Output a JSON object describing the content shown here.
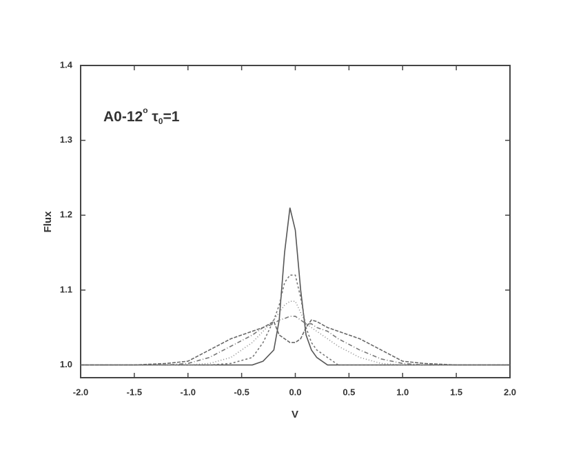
{
  "chart_data": {
    "type": "line",
    "xlabel": "V",
    "ylabel": "Flux",
    "annotation": [
      "A0-12",
      "o",
      " τ",
      "0",
      "=1"
    ],
    "x": [
      -2.0,
      -1.5,
      -1.2,
      -1.0,
      -0.8,
      -0.6,
      -0.4,
      -0.3,
      -0.2,
      -0.15,
      -0.1,
      -0.05,
      0,
      0.05,
      0.1,
      0.15,
      0.2,
      0.3,
      0.4,
      0.6,
      0.8,
      1.0,
      1.2,
      1.5,
      2.0
    ],
    "series": [
      {
        "color": "#555555",
        "dash": "none",
        "values": [
          1.0,
          1.0,
          1.0,
          1.0,
          1.0,
          1.0,
          1.0,
          1.005,
          1.02,
          1.06,
          1.15,
          1.21,
          1.18,
          1.1,
          1.04,
          1.02,
          1.01,
          1.0,
          1.0,
          1.0,
          1.0,
          1.0,
          1.0,
          1.0,
          1.0
        ]
      },
      {
        "color": "#777777",
        "dash": "3,3",
        "values": [
          1.0,
          1.0,
          1.0,
          1.0,
          1.0,
          1.002,
          1.01,
          1.03,
          1.06,
          1.08,
          1.11,
          1.12,
          1.12,
          1.09,
          1.05,
          1.03,
          1.02,
          1.01,
          1.0,
          1.0,
          1.0,
          1.0,
          1.0,
          1.0,
          1.0
        ]
      },
      {
        "color": "#888888",
        "dash": "1,3",
        "values": [
          1.0,
          1.0,
          1.0,
          1.0,
          1.002,
          1.01,
          1.03,
          1.045,
          1.06,
          1.07,
          1.08,
          1.085,
          1.085,
          1.07,
          1.055,
          1.05,
          1.045,
          1.035,
          1.025,
          1.01,
          1.002,
          1.0,
          1.0,
          1.0,
          1.0
        ]
      },
      {
        "color": "#777777",
        "dash": "6,3,1,3",
        "values": [
          1.0,
          1.0,
          1.0,
          1.002,
          1.01,
          1.025,
          1.04,
          1.05,
          1.055,
          1.06,
          1.062,
          1.065,
          1.065,
          1.06,
          1.055,
          1.055,
          1.05,
          1.045,
          1.035,
          1.02,
          1.008,
          1.002,
          1.0,
          1.0,
          1.0
        ]
      },
      {
        "color": "#666666",
        "dash": "5,2",
        "values": [
          1.0,
          1.0,
          1.002,
          1.005,
          1.02,
          1.035,
          1.045,
          1.05,
          1.058,
          1.04,
          1.035,
          1.03,
          1.03,
          1.035,
          1.05,
          1.06,
          1.058,
          1.05,
          1.045,
          1.035,
          1.02,
          1.005,
          1.002,
          1.0,
          1.0
        ]
      }
    ],
    "xlim": [
      -2.0,
      2.0
    ],
    "xticks": [
      {
        "value": -2.0,
        "label": "-2.0"
      },
      -1.5,
      {
        "value": -1.0,
        "label": "-1.0"
      },
      -0.5,
      {
        "value": 0,
        "label": "0.0"
      },
      0.5,
      {
        "value": 1.0,
        "label": "1.0"
      },
      1.5,
      {
        "value": 2.0,
        "label": "2.0"
      }
    ],
    "ylim": [
      0.983,
      1.4
    ],
    "yticks": [
      {
        "value": 1.0,
        "label": "1.0"
      },
      1.1,
      1.2,
      1.3,
      1.4
    ],
    "grid": false
  }
}
